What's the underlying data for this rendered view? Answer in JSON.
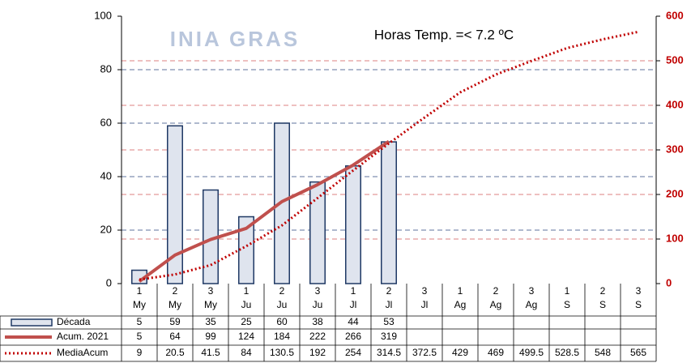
{
  "chart_data": {
    "type": "bar_line",
    "annotation": "Horas Temp. =< 7.2 ºC",
    "logo": "INIA GRAS",
    "categories": [
      [
        "1",
        "My"
      ],
      [
        "2",
        "My"
      ],
      [
        "3",
        "My"
      ],
      [
        "1",
        "Ju"
      ],
      [
        "2",
        "Ju"
      ],
      [
        "3",
        "Ju"
      ],
      [
        "1",
        "Jl"
      ],
      [
        "2",
        "Jl"
      ],
      [
        "3",
        "Jl"
      ],
      [
        "1",
        "Ag"
      ],
      [
        "2",
        "Ag"
      ],
      [
        "3",
        "Ag"
      ],
      [
        "1",
        "S"
      ],
      [
        "2",
        "S"
      ],
      [
        "3",
        "S"
      ]
    ],
    "series": [
      {
        "name": "Década",
        "type": "bar",
        "color": "#dfe4ee",
        "edge": "#1f3864",
        "axis": "y",
        "values": [
          5,
          59,
          35,
          25,
          60,
          38,
          44,
          53,
          null,
          null,
          null,
          null,
          null,
          null,
          null
        ]
      },
      {
        "name": "Acum. 2021",
        "type": "line",
        "color": "#c0504d",
        "axis": "y2",
        "values": [
          5,
          64,
          99,
          124,
          184,
          222,
          266,
          319,
          null,
          null,
          null,
          null,
          null,
          null,
          null
        ]
      },
      {
        "name": "MediaAcum",
        "type": "dotted",
        "color": "#c00000",
        "axis": "y2",
        "values": [
          9,
          20.5,
          41.5,
          84,
          130.5,
          192,
          254,
          314.5,
          372.5,
          429,
          469,
          499.5,
          528.5,
          548,
          565
        ]
      }
    ],
    "ylim": [
      0,
      100
    ],
    "yticks": [
      0,
      20,
      40,
      60,
      80,
      100
    ],
    "y2lim": [
      0,
      600
    ],
    "y2ticks": [
      0,
      100,
      200,
      300,
      400,
      500,
      600
    ],
    "grid": true,
    "y2color": "#c00000"
  }
}
